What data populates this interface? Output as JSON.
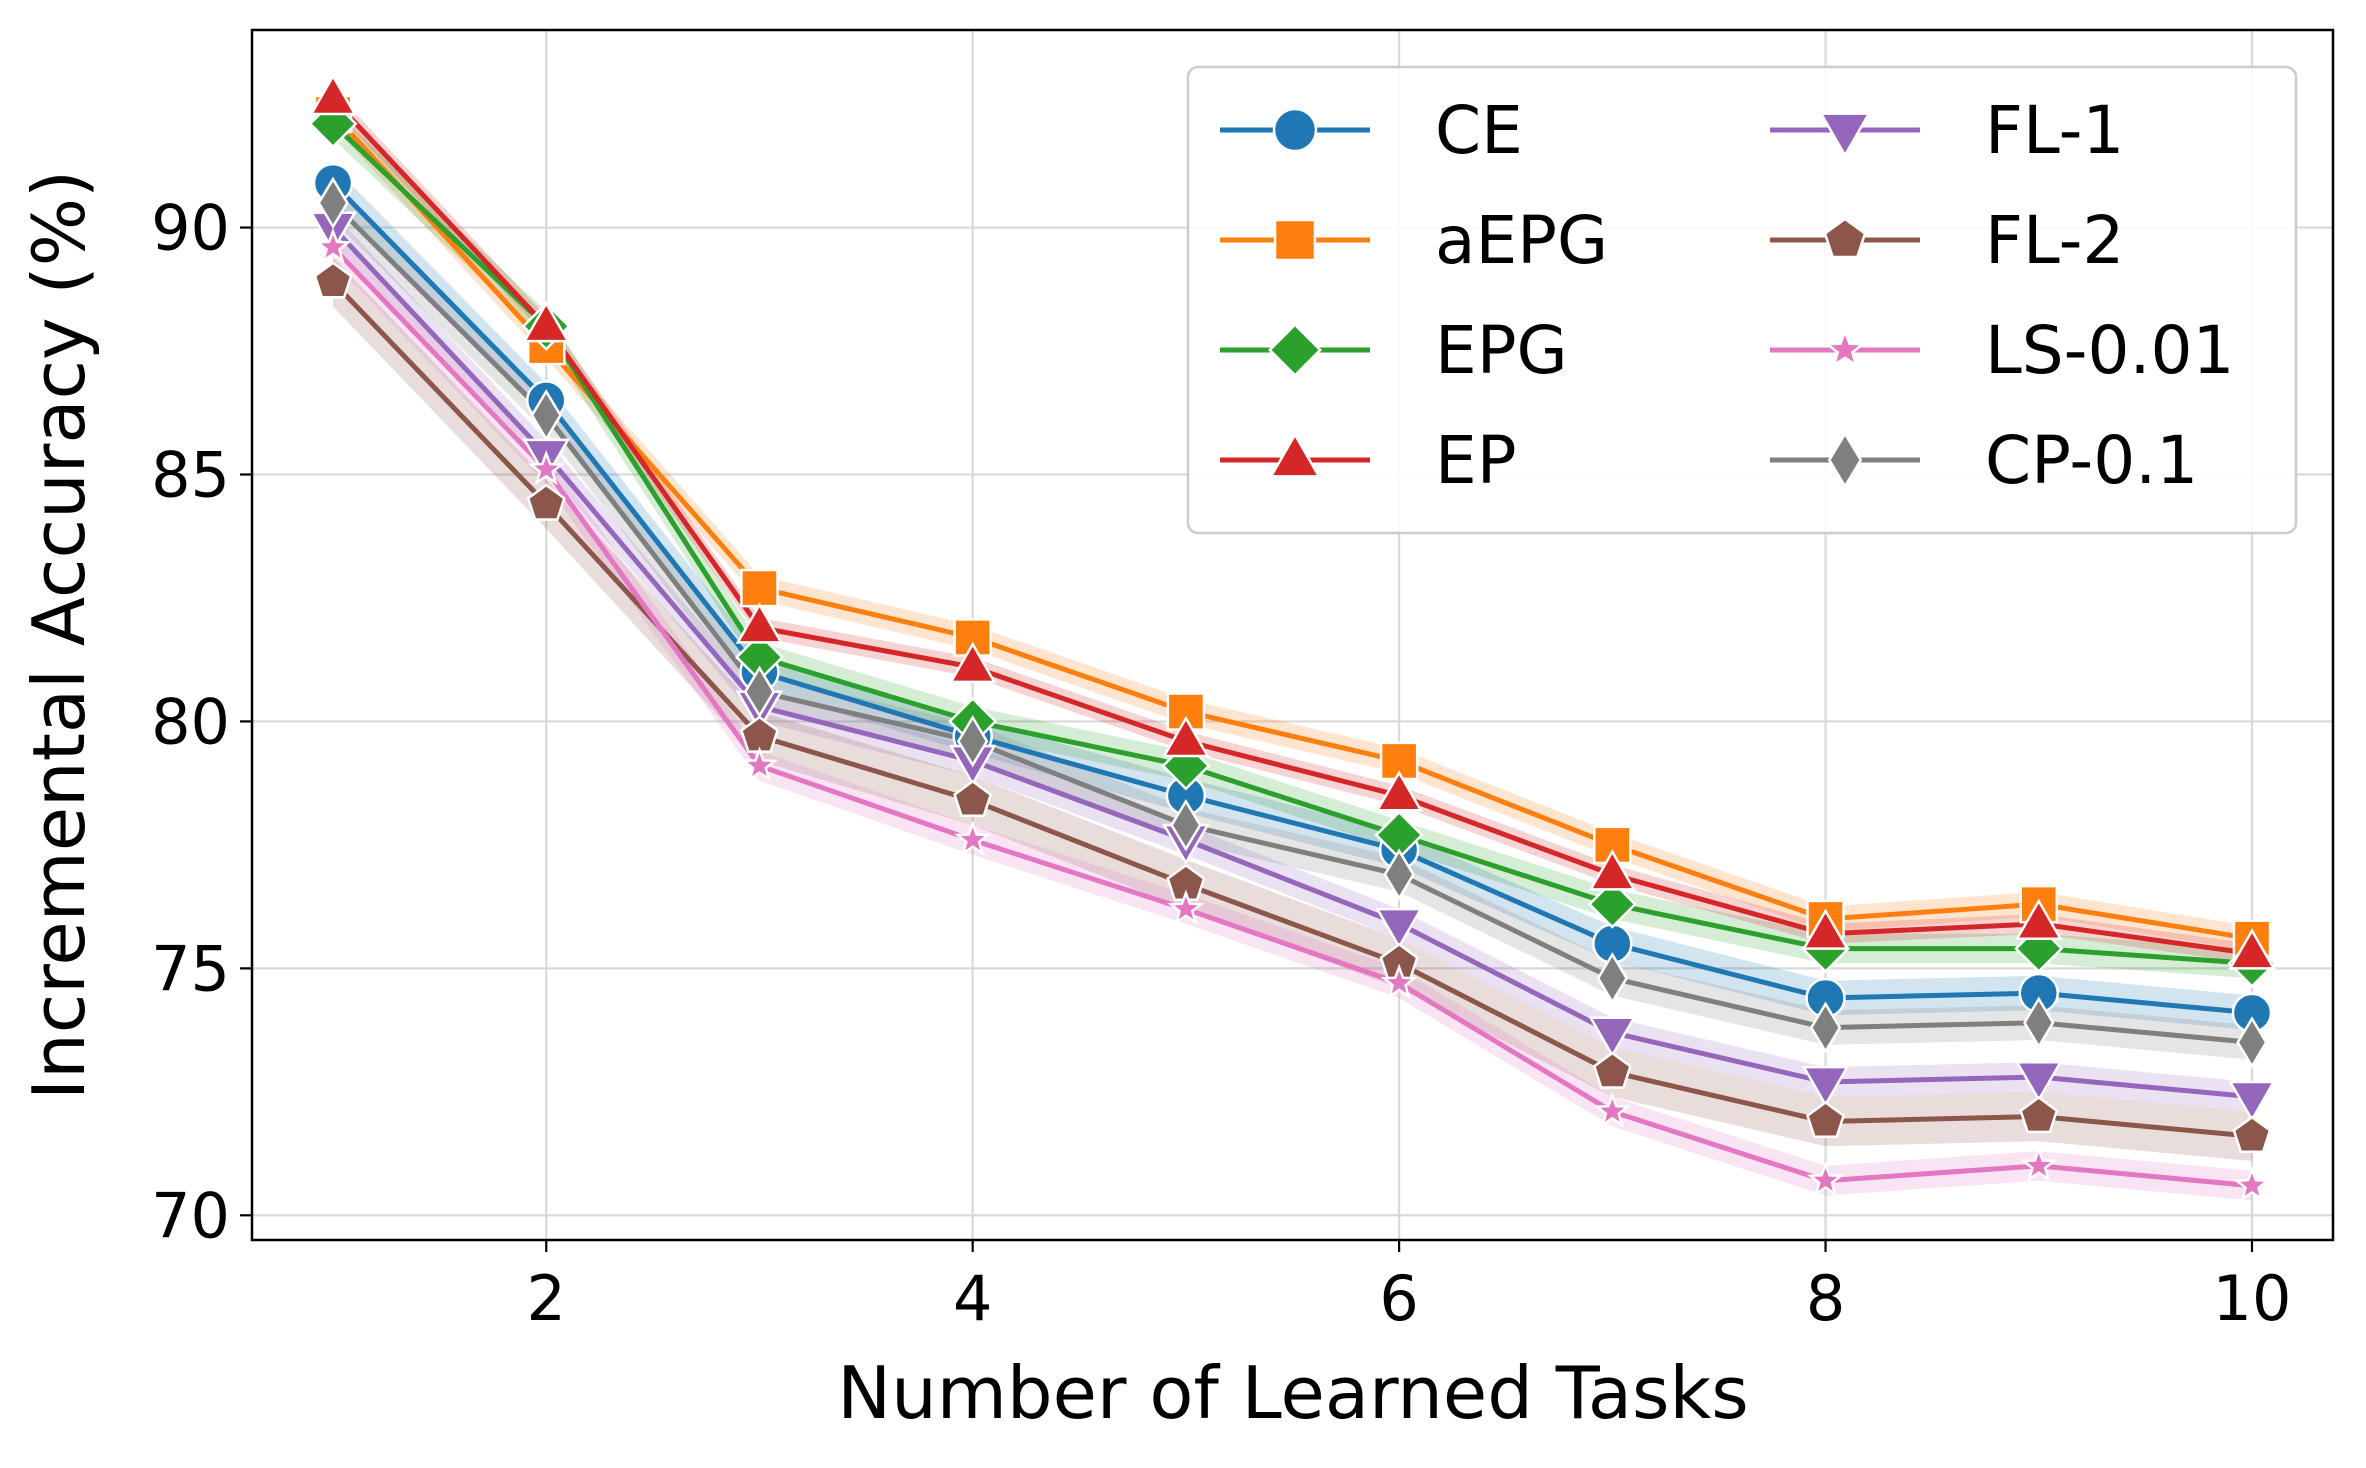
{
  "chart_data": {
    "type": "line",
    "title": "",
    "xlabel": "Number of Learned Tasks",
    "ylabel": "Incremental Accuracy (%)",
    "xlim": [
      0.62,
      10.38
    ],
    "ylim": [
      69.5,
      94.0
    ],
    "xticks": [
      2,
      4,
      6,
      8,
      10
    ],
    "yticks": [
      70,
      75,
      80,
      85,
      90
    ],
    "grid": true,
    "legend_position": "top-right",
    "x": [
      1,
      2,
      3,
      4,
      5,
      6,
      7,
      8,
      9,
      10
    ],
    "series": [
      {
        "name": "CE",
        "color": "#1f77b4",
        "marker": "circle",
        "band": 0.35,
        "values": [
          90.9,
          86.5,
          81.0,
          79.7,
          78.5,
          77.4,
          75.5,
          74.4,
          74.5,
          74.1
        ]
      },
      {
        "name": "aEPG",
        "color": "#ff7f0e",
        "marker": "square",
        "band": 0.25,
        "values": [
          92.3,
          87.6,
          82.7,
          81.7,
          80.2,
          79.2,
          77.5,
          76.0,
          76.3,
          75.6
        ]
      },
      {
        "name": "EPG",
        "color": "#2ca02c",
        "marker": "diamond",
        "band": 0.3,
        "values": [
          92.1,
          88.0,
          81.3,
          80.0,
          79.1,
          77.7,
          76.3,
          75.4,
          75.4,
          75.1
        ]
      },
      {
        "name": "EP",
        "color": "#d62728",
        "marker": "triangle-up",
        "band": 0.2,
        "values": [
          92.6,
          88.0,
          81.9,
          81.1,
          79.6,
          78.5,
          76.9,
          75.7,
          75.9,
          75.3
        ]
      },
      {
        "name": "FL-1",
        "color": "#9467bd",
        "marker": "triangle-down",
        "band": 0.3,
        "values": [
          90.0,
          85.4,
          80.3,
          79.2,
          77.6,
          75.9,
          73.7,
          72.7,
          72.8,
          72.4
        ]
      },
      {
        "name": "FL-2",
        "color": "#8c564b",
        "marker": "pentagon",
        "band": 0.5,
        "values": [
          88.9,
          84.4,
          79.7,
          78.4,
          76.7,
          75.1,
          72.9,
          71.9,
          72.0,
          71.6
        ]
      },
      {
        "name": "LS-0.01",
        "color": "#e377c2",
        "marker": "star",
        "band": 0.3,
        "values": [
          89.6,
          85.1,
          79.1,
          77.6,
          76.2,
          74.7,
          72.1,
          70.7,
          71.0,
          70.6
        ]
      },
      {
        "name": "CP-0.1",
        "color": "#7f7f7f",
        "marker": "thin-diamond",
        "band": 0.35,
        "values": [
          90.5,
          86.2,
          80.6,
          79.6,
          77.9,
          76.9,
          74.8,
          73.8,
          73.9,
          73.5
        ]
      }
    ]
  }
}
